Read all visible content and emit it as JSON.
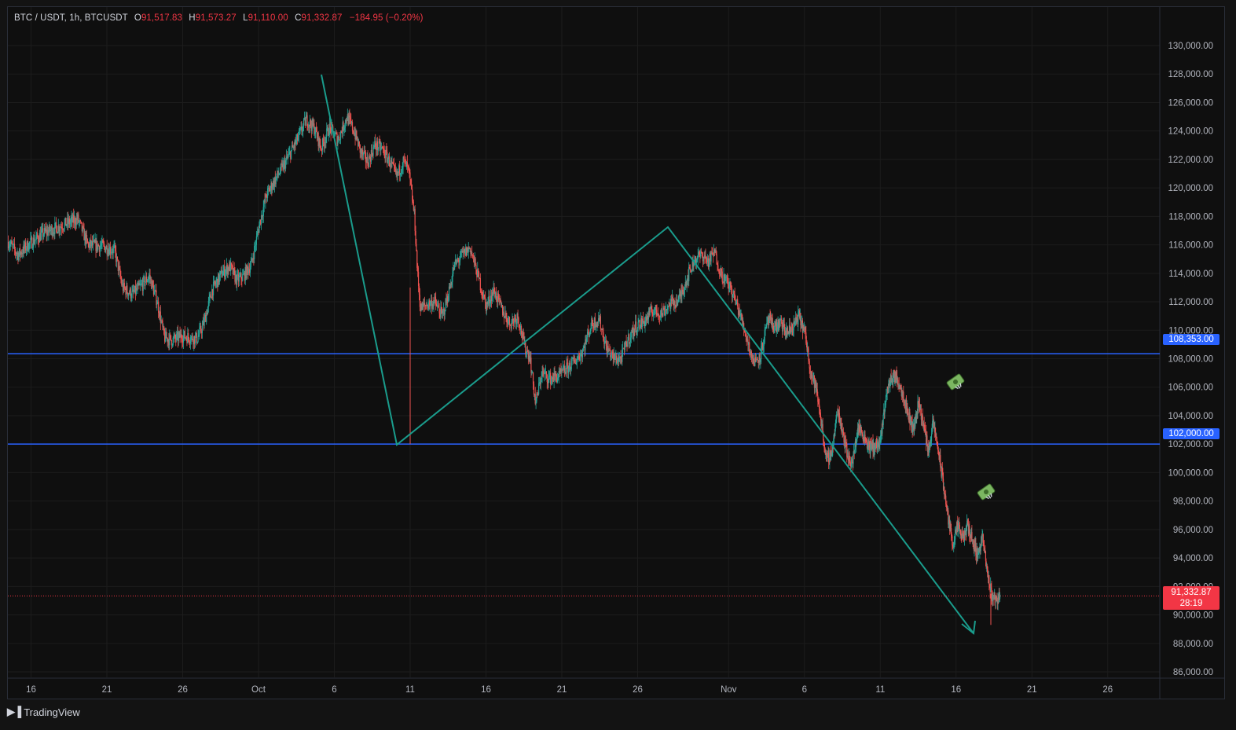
{
  "legend": {
    "symbol": "BTC / USDT, 1h, BTCUSDT",
    "open_label": "O",
    "open": "91,517.83",
    "high_label": "H",
    "high": "91,573.27",
    "low_label": "L",
    "low": "91,110.00",
    "close_label": "C",
    "close": "91,332.87",
    "change": "−184.95 (−0.20%)"
  },
  "price_tags": {
    "level_1": "108,353.00",
    "level_2": "102,000.00",
    "last_price": "91,332.87",
    "countdown": "28:19"
  },
  "branding": {
    "name": "TradingView"
  },
  "colors": {
    "up": "#26a69a",
    "down": "#ef5350",
    "level_line": "#2962ff",
    "trend_line": "#1a9c8c",
    "last_price": "#f23645",
    "background": "#0f0f0f",
    "grid": "#1c1c1c"
  },
  "chart_data": {
    "type": "candlestick",
    "interval": "1h",
    "y_axis": {
      "min": 85000,
      "max": 131000,
      "ticks": [
        86000,
        88000,
        90000,
        92000,
        94000,
        96000,
        98000,
        100000,
        102000,
        104000,
        106000,
        108000,
        110000,
        112000,
        114000,
        116000,
        118000,
        120000,
        122000,
        124000,
        126000,
        128000,
        130000
      ],
      "tick_labels": [
        "86,000.00",
        "88,000.00",
        "90,000.00",
        "92,000.00",
        "94,000.00",
        "96,000.00",
        "98,000.00",
        "100,000.00",
        "102,000.00",
        "104,000.00",
        "106,000.00",
        "108,000.00",
        "110,000.00",
        "112,000.00",
        "114,000.00",
        "116,000.00",
        "118,000.00",
        "120,000.00",
        "122,000.00",
        "124,000.00",
        "126,000.00",
        "128,000.00",
        "130,000.00"
      ]
    },
    "x_axis": {
      "tick_labels": [
        "16",
        "21",
        "26",
        "Oct",
        "6",
        "11",
        "16",
        "21",
        "26",
        "Nov",
        "6",
        "11",
        "16",
        "21",
        "26"
      ],
      "tick_days": [
        -15,
        -10,
        -5,
        0,
        5,
        10,
        15,
        20,
        25,
        31,
        36,
        41,
        46,
        51,
        56
      ],
      "range_days": [
        -16.5,
        63
      ]
    },
    "price_path": [
      [
        -16.5,
        116200
      ],
      [
        -15.5,
        115300
      ],
      [
        -14.5,
        116000
      ],
      [
        -13,
        116800
      ],
      [
        -11,
        117400
      ],
      [
        -9.5,
        117800
      ],
      [
        -8.5,
        116000
      ],
      [
        -7,
        115900
      ],
      [
        -5.8,
        115600
      ],
      [
        -5,
        113000
      ],
      [
        -4,
        112500
      ],
      [
        -3,
        113200
      ],
      [
        -2.3,
        113800
      ],
      [
        -1.5,
        112000
      ],
      [
        -0.8,
        109500
      ],
      [
        0,
        109300
      ],
      [
        1,
        109600
      ],
      [
        2.5,
        109400
      ],
      [
        3.2,
        110500
      ],
      [
        4,
        112800
      ],
      [
        5,
        114000
      ],
      [
        5.8,
        114500
      ],
      [
        6.5,
        113500
      ],
      [
        7.2,
        113800
      ],
      [
        8,
        114700
      ],
      [
        8.8,
        117500
      ],
      [
        9.5,
        119500
      ],
      [
        10.3,
        120500
      ],
      [
        11,
        121300
      ],
      [
        11.8,
        122300
      ],
      [
        12.6,
        123400
      ],
      [
        13.5,
        124800
      ],
      [
        14.3,
        124200
      ],
      [
        15,
        122800
      ],
      [
        15.8,
        124200
      ],
      [
        16.7,
        123400
      ],
      [
        17.6,
        125000
      ],
      [
        18.3,
        124000
      ],
      [
        19,
        122500
      ],
      [
        19.7,
        121800
      ],
      [
        20.4,
        123000
      ],
      [
        21.2,
        122700
      ],
      [
        21.9,
        121800
      ],
      [
        22.6,
        120800
      ],
      [
        23.3,
        121900
      ],
      [
        23.8,
        121200
      ],
      [
        24.4,
        118000
      ],
      [
        24.7,
        114000
      ],
      [
        25,
        111500
      ],
      [
        25.6,
        111800
      ],
      [
        26.4,
        112000
      ],
      [
        27.2,
        111000
      ],
      [
        27.8,
        112500
      ],
      [
        28.4,
        114500
      ],
      [
        29.1,
        115200
      ],
      [
        30,
        115800
      ],
      [
        30.8,
        113800
      ],
      [
        31.6,
        111700
      ],
      [
        32.4,
        112800
      ],
      [
        33.3,
        111300
      ],
      [
        34,
        110500
      ],
      [
        34.8,
        111000
      ],
      [
        35.5,
        108800
      ],
      [
        36,
        108200
      ],
      [
        36.6,
        104800
      ],
      [
        37.2,
        107000
      ],
      [
        38,
        106600
      ],
      [
        39,
        106800
      ],
      [
        39.7,
        107300
      ],
      [
        40.5,
        107800
      ],
      [
        41.3,
        108500
      ],
      [
        42.2,
        110400
      ],
      [
        43,
        110800
      ],
      [
        43.7,
        108800
      ],
      [
        44.5,
        108000
      ],
      [
        45.2,
        108000
      ],
      [
        45.8,
        109200
      ],
      [
        46.7,
        110300
      ],
      [
        47.5,
        110600
      ],
      [
        48.4,
        111400
      ],
      [
        49.3,
        111200
      ],
      [
        50.2,
        111900
      ],
      [
        51,
        112100
      ],
      [
        51.8,
        113600
      ],
      [
        52.6,
        115000
      ],
      [
        53.4,
        115300
      ],
      [
        54,
        114800
      ],
      [
        54.6,
        115500
      ],
      [
        55.3,
        113900
      ],
      [
        56.2,
        113000
      ],
      [
        57,
        111500
      ],
      [
        57.8,
        109600
      ],
      [
        58.5,
        107800
      ],
      [
        59.2,
        108200
      ],
      [
        60,
        110700
      ]
    ],
    "price_path_2": [
      [
        60,
        110700
      ],
      [
        61,
        110200
      ],
      [
        61.8,
        110500
      ],
      [
        62.6,
        109800
      ],
      [
        63.5,
        110200
      ],
      [
        64.4,
        111000
      ],
      [
        65.3,
        109700
      ],
      [
        66.1,
        107000
      ],
      [
        66.8,
        106000
      ],
      [
        67.6,
        103500
      ],
      [
        68.3,
        100800
      ],
      [
        69.1,
        101500
      ],
      [
        69.9,
        104400
      ],
      [
        70.6,
        103000
      ],
      [
        71.3,
        101200
      ],
      [
        72,
        100600
      ],
      [
        72.8,
        103200
      ],
      [
        73.6,
        102600
      ],
      [
        74.4,
        101800
      ],
      [
        75.2,
        101800
      ],
      [
        76,
        102100
      ],
      [
        76.6,
        104800
      ],
      [
        77.2,
        106300
      ],
      [
        77.9,
        106800
      ],
      [
        78.6,
        106400
      ],
      [
        79.3,
        105300
      ],
      [
        80,
        104000
      ],
      [
        80.7,
        103000
      ],
      [
        81.4,
        105000
      ],
      [
        82.1,
        103400
      ],
      [
        82.8,
        101500
      ],
      [
        83.5,
        103500
      ],
      [
        84.2,
        101600
      ],
      [
        84.9,
        99300
      ],
      [
        85.6,
        96800
      ],
      [
        86.3,
        95000
      ],
      [
        87,
        96200
      ],
      [
        87.7,
        95300
      ],
      [
        88.4,
        96300
      ],
      [
        89.1,
        95200
      ],
      [
        89.8,
        94200
      ],
      [
        90.5,
        95500
      ],
      [
        91.2,
        92800
      ],
      [
        91.9,
        91300
      ],
      [
        92.5,
        91100
      ],
      [
        93,
        91330
      ]
    ],
    "horizontal_levels": [
      108353,
      102000
    ],
    "last_price": 91332.87,
    "trend_lines": [
      [
        [
          5.3,
          126200
        ],
        [
          10.4,
          101500
        ],
        [
          27.8,
          116000
        ],
        [
          58.8,
          88500
        ]
      ]
    ]
  }
}
